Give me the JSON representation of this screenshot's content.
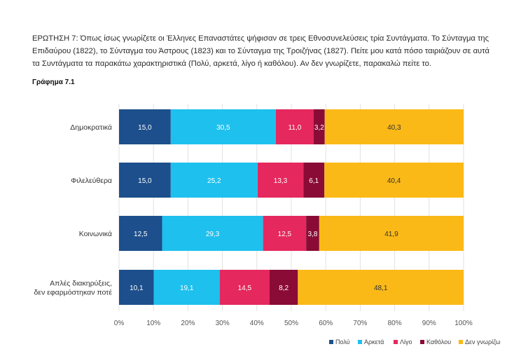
{
  "question_text": "ΕΡΩΤΗΣΗ 7: Όπως ίσως γνωρίζετε οι Έλληνες Επαναστάτες ψήφισαν σε τρεις Εθνοσυνελεύσεις τρία Συντάγματα. Το Σύνταγμα της Επιδαύρου (1822), το Σύνταγμα του Άστρους (1823) και το Σύνταγμα της Τροιζήνας (1827). Πείτε μου κατά πόσο ταιριάζουν σε αυτά τα Συντάγματα τα παρακάτω χαρακτηριστικά (Πολύ, αρκετά, λίγο ή καθόλου). Αν δεν γνωρίζετε, παρακαλώ πείτε το.",
  "chart_label": "Γράφημα 7.1",
  "chart_data": {
    "type": "bar",
    "orientation": "horizontal",
    "stacked": true,
    "title": "Γράφημα 7.1",
    "categories": [
      "Δημοκρατικά",
      "Φιλελεύθερα",
      "Κοινωνικά",
      "Απλές διακηρύξεις, δεν εφαρμόστηκαν ποτέ"
    ],
    "category_lines": [
      [
        "Δημοκρατικά"
      ],
      [
        "Φιλελεύθερα"
      ],
      [
        "Κοινωνικά"
      ],
      [
        "Απλές διακηρύξεις,",
        "δεν εφαρμόστηκαν ποτέ"
      ]
    ],
    "series": [
      {
        "name": "Πολύ",
        "color": "#1c4f8c",
        "values": [
          15.0,
          15.0,
          12.5,
          10.1
        ],
        "labels": [
          "15,0",
          "15,0",
          "12,5",
          "10,1"
        ]
      },
      {
        "name": "Αρκετά",
        "color": "#1ec0ee",
        "values": [
          30.5,
          25.2,
          29.3,
          19.1
        ],
        "labels": [
          "30,5",
          "25,2",
          "29,3",
          "19,1"
        ]
      },
      {
        "name": "Λίγο",
        "color": "#e5285d",
        "values": [
          11.0,
          13.3,
          12.5,
          14.5
        ],
        "labels": [
          "11,0",
          "13,3",
          "12,5",
          "14,5"
        ]
      },
      {
        "name": "Καθόλου",
        "color": "#8a0b35",
        "values": [
          3.2,
          6.1,
          3.8,
          8.2
        ],
        "labels": [
          "3,2",
          "6,1",
          "3,8",
          "8,2"
        ]
      },
      {
        "name": "Δεν γνωρίζω",
        "color": "#fbb917",
        "values": [
          40.3,
          40.4,
          41.9,
          48.1
        ],
        "labels": [
          "40,3",
          "40,4",
          "41,9",
          "48,1"
        ]
      }
    ],
    "xlim": [
      0,
      100
    ],
    "xticks": [
      0,
      10,
      20,
      30,
      40,
      50,
      60,
      70,
      80,
      90,
      100
    ],
    "xtick_labels": [
      "0%",
      "10%",
      "20%",
      "30%",
      "40%",
      "50%",
      "60%",
      "70%",
      "80%",
      "90%",
      "100%"
    ],
    "grid": true,
    "legend_position": "bottom-right",
    "data_label_color": "#ffffff",
    "dark_data_label_color": "#333333"
  }
}
